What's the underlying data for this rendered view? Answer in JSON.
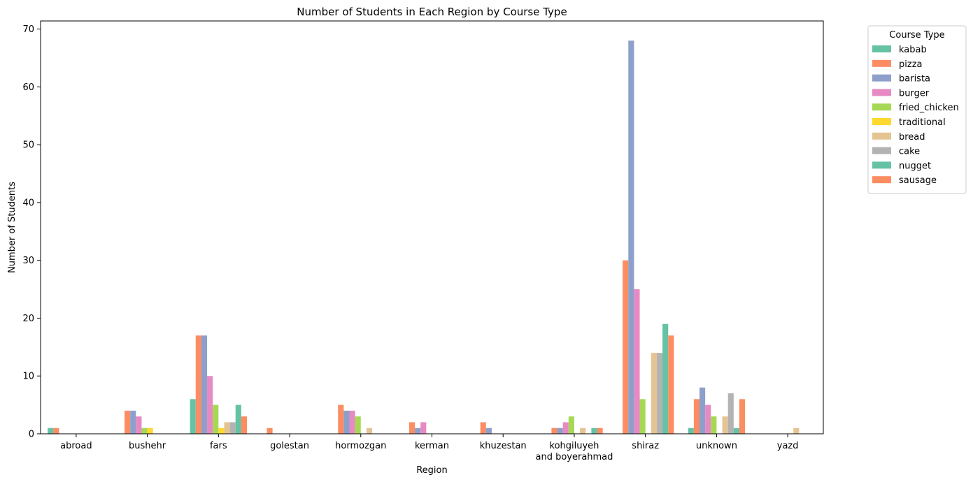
{
  "chart_data": {
    "type": "bar",
    "title": "Number of Students in Each Region by Course Type",
    "xlabel": "Region",
    "ylabel": "Number of Students",
    "ylim": [
      0,
      71.4
    ],
    "yticks": [
      0,
      10,
      20,
      30,
      40,
      50,
      60,
      70
    ],
    "grid": false,
    "legend": {
      "title": "Course Type",
      "placement": "outside-top-right"
    },
    "categories": [
      [
        "abroad"
      ],
      [
        "bushehr"
      ],
      [
        "fars"
      ],
      [
        "golestan"
      ],
      [
        "hormozgan"
      ],
      [
        "kerman"
      ],
      [
        "khuzestan"
      ],
      [
        "kohgiluyeh",
        "and boyerahmad"
      ],
      [
        "shiraz"
      ],
      [
        "unknown"
      ],
      [
        "yazd"
      ]
    ],
    "series": [
      {
        "name": "kabab",
        "color": "#66c2a5",
        "values": [
          1,
          0,
          6,
          0,
          0,
          0,
          0,
          0,
          0,
          1,
          0
        ]
      },
      {
        "name": "pizza",
        "color": "#fc8d62",
        "values": [
          1,
          4,
          17,
          1,
          5,
          2,
          2,
          1,
          30,
          6,
          0
        ]
      },
      {
        "name": "barista",
        "color": "#8da0cb",
        "values": [
          0,
          4,
          17,
          0,
          4,
          1,
          1,
          1,
          68,
          8,
          0
        ]
      },
      {
        "name": "burger",
        "color": "#e78ac3",
        "values": [
          0,
          3,
          10,
          0,
          4,
          2,
          0,
          2,
          25,
          5,
          0
        ]
      },
      {
        "name": "fried_chicken",
        "color": "#a6d854",
        "values": [
          0,
          1,
          5,
          0,
          3,
          0,
          0,
          3,
          6,
          3,
          0
        ]
      },
      {
        "name": "traditional",
        "color": "#ffd92f",
        "values": [
          0,
          1,
          1,
          0,
          0,
          0,
          0,
          0,
          0,
          0,
          0
        ]
      },
      {
        "name": "bread",
        "color": "#e5c494",
        "values": [
          0,
          0,
          2,
          0,
          1,
          0,
          0,
          1,
          14,
          3,
          1
        ]
      },
      {
        "name": "cake",
        "color": "#b3b3b3",
        "values": [
          0,
          0,
          2,
          0,
          0,
          0,
          0,
          0,
          14,
          7,
          0
        ]
      },
      {
        "name": "nugget",
        "color": "#66c2a5",
        "values": [
          0,
          0,
          5,
          0,
          0,
          0,
          0,
          1,
          19,
          1,
          0
        ]
      },
      {
        "name": "sausage",
        "color": "#fc8d62",
        "values": [
          0,
          0,
          3,
          0,
          0,
          0,
          0,
          1,
          17,
          6,
          0
        ]
      }
    ]
  }
}
